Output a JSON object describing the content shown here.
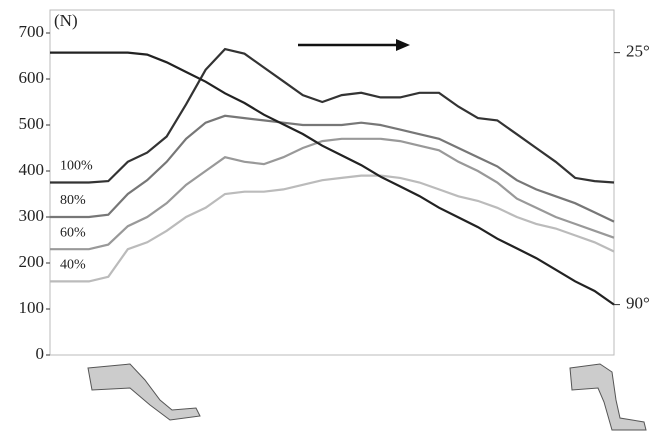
{
  "chart_data": {
    "type": "line",
    "y_label": "(N)",
    "ylim": [
      0,
      750
    ],
    "yticks": [
      0,
      100,
      200,
      300,
      400,
      500,
      600,
      700
    ],
    "y2lim": [
      103,
      14
    ],
    "y2ticks": [
      {
        "value": 25,
        "label": "25°"
      },
      {
        "value": 90,
        "label": "90°"
      }
    ],
    "series": [
      {
        "name": "100%",
        "color": "#333333",
        "values": [
          375,
          375,
          375,
          378,
          420,
          440,
          475,
          545,
          620,
          665,
          655,
          625,
          595,
          565,
          550,
          565,
          570,
          560,
          560,
          570,
          570,
          540,
          515,
          510,
          480,
          450,
          420,
          385,
          378,
          375
        ]
      },
      {
        "name": "80%",
        "color": "#777777",
        "values": [
          300,
          300,
          300,
          305,
          350,
          380,
          420,
          470,
          505,
          520,
          515,
          510,
          505,
          500,
          500,
          500,
          505,
          500,
          490,
          480,
          470,
          450,
          430,
          410,
          380,
          360,
          345,
          330,
          310,
          290
        ]
      },
      {
        "name": "60%",
        "color": "#999999",
        "values": [
          230,
          230,
          230,
          240,
          280,
          300,
          330,
          370,
          400,
          430,
          420,
          415,
          430,
          450,
          465,
          470,
          470,
          470,
          465,
          455,
          445,
          420,
          400,
          375,
          340,
          320,
          300,
          285,
          270,
          255
        ]
      },
      {
        "name": "40%",
        "color": "#bbbbbb",
        "values": [
          160,
          160,
          160,
          170,
          230,
          245,
          270,
          300,
          320,
          350,
          355,
          355,
          360,
          370,
          380,
          385,
          390,
          390,
          385,
          375,
          360,
          345,
          335,
          320,
          300,
          285,
          275,
          260,
          245,
          225
        ]
      },
      {
        "color": "#222222",
        "axis": "y2",
        "values": [
          25,
          25,
          25,
          25,
          25,
          25.5,
          27.5,
          30,
          32.5,
          35.5,
          38,
          41,
          43.5,
          46,
          49,
          51.5,
          54,
          57,
          59.5,
          62,
          65,
          67.5,
          70,
          73,
          75.5,
          78,
          81,
          84,
          86.5,
          90
        ]
      }
    ]
  }
}
